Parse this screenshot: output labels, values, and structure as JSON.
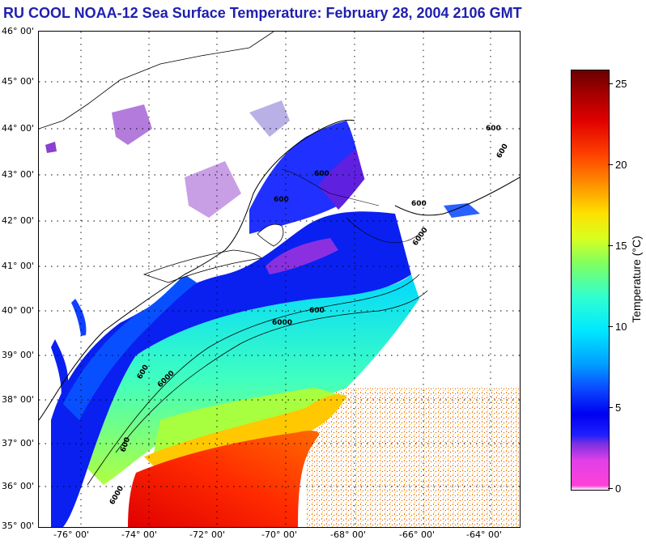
{
  "title": "RU COOL  NOAA-12  Sea Surface Temperature:  February 28, 2004 2106 GMT",
  "lat_labels": [
    "46° 00'",
    "45° 00'",
    "44° 00'",
    "43° 00'",
    "42° 00'",
    "41° 00'",
    "40° 00'",
    "39° 00'",
    "38° 00'",
    "37° 00'",
    "36° 00'",
    "35° 00'"
  ],
  "lon_labels": [
    "-76° 00'",
    "-74° 00'",
    "-72° 00'",
    "-70° 00'",
    "-68° 00'",
    "-66° 00'",
    "-64° 00'"
  ],
  "bathymetry_labels": [
    "600",
    "600",
    "600",
    "600",
    "600",
    "6000",
    "600",
    "6000",
    "6000",
    "600",
    "600",
    "6000"
  ],
  "colorbar": {
    "title": "Temperature (°C)",
    "ticks": [
      "25",
      "20",
      "15",
      "10",
      "5",
      "0"
    ],
    "range": [
      0,
      26
    ]
  },
  "colors": {
    "title": "#1f1fb0",
    "cold": "#ff40d8",
    "cool": "#0000f0",
    "mid": "#00e8ff",
    "warm": "#ffe000",
    "hot": "#e00000"
  }
}
